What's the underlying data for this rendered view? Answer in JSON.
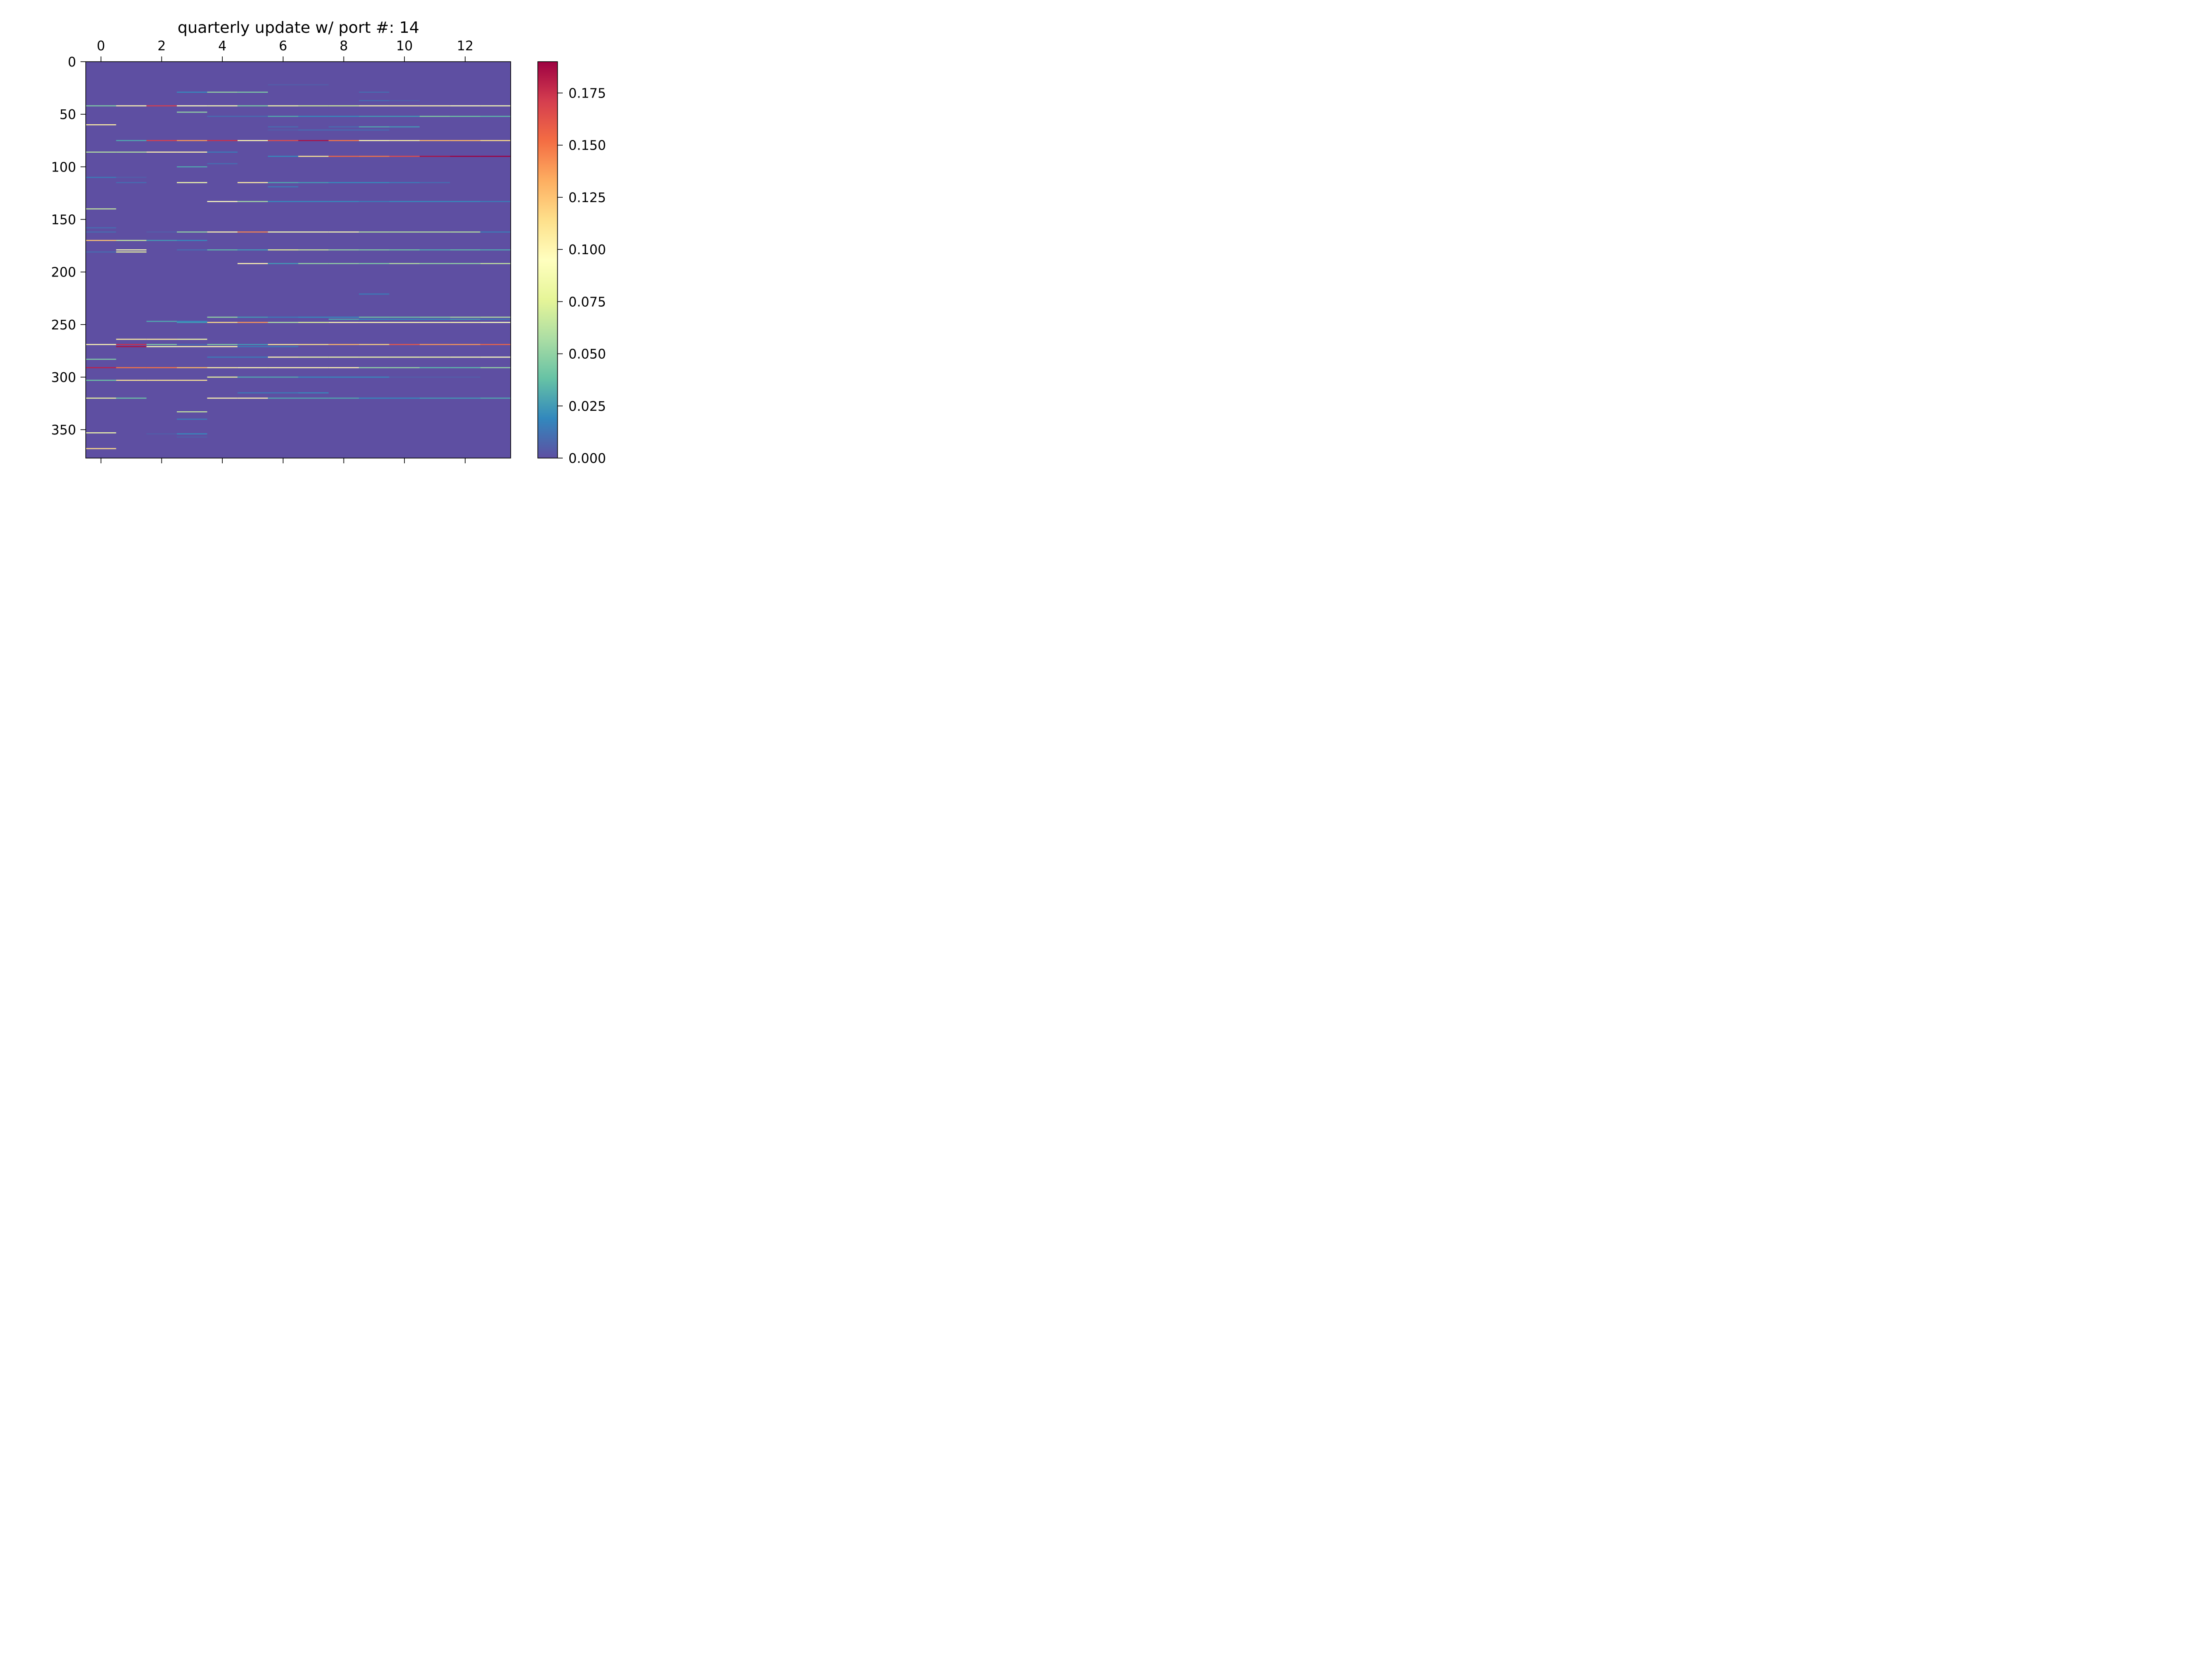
{
  "chart_data": {
    "type": "heatmap",
    "title": "quarterly update w/ port #: 14",
    "colormap": "Spectral_r",
    "x_ticks": [
      0,
      2,
      4,
      6,
      8,
      10,
      12
    ],
    "y_ticks": [
      0,
      50,
      100,
      150,
      200,
      250,
      300,
      350
    ],
    "xlim": [
      -0.5,
      13.5
    ],
    "ylim": [
      377,
      0
    ],
    "n_columns": 14,
    "n_rows": 377,
    "colorbar": {
      "range": [
        0.0,
        0.19
      ],
      "ticks": [
        "0.000",
        "0.025",
        "0.050",
        "0.075",
        "0.100",
        "0.125",
        "0.150",
        "0.175"
      ]
    },
    "background_value": 0.0,
    "rows": [
      {
        "row": 22,
        "cols": [
          6,
          7
        ],
        "values": [
          0.005,
          0.005
        ]
      },
      {
        "row": 29,
        "cols": [
          3,
          4,
          5,
          9
        ],
        "values": [
          0.02,
          0.05,
          0.045,
          0.01
        ]
      },
      {
        "row": 37,
        "cols": [
          9,
          10
        ],
        "values": [
          0.01,
          0.005
        ]
      },
      {
        "row": 42,
        "cols": [
          0,
          1,
          2,
          3,
          4,
          5,
          6,
          7,
          8,
          9,
          10,
          11,
          12,
          13
        ],
        "values": [
          0.045,
          0.1,
          0.17,
          0.095,
          0.09,
          0.045,
          0.085,
          0.07,
          0.07,
          0.1,
          0.1,
          0.1,
          0.095,
          0.09
        ]
      },
      {
        "row": 48,
        "cols": [
          3
        ],
        "values": [
          0.05
        ]
      },
      {
        "row": 52,
        "cols": [
          4,
          5,
          6,
          7,
          8,
          9,
          10,
          11,
          12,
          13
        ],
        "values": [
          0.01,
          0.01,
          0.03,
          0.02,
          0.02,
          0.025,
          0.025,
          0.045,
          0.04,
          0.035
        ]
      },
      {
        "row": 60,
        "cols": [
          0
        ],
        "values": [
          0.105
        ]
      },
      {
        "row": 62,
        "cols": [
          6,
          8,
          9,
          10
        ],
        "values": [
          0.01,
          0.01,
          0.03,
          0.025
        ]
      },
      {
        "row": 65,
        "cols": [
          6,
          7,
          8,
          9
        ],
        "values": [
          0.005,
          0.01,
          0.01,
          0.01
        ]
      },
      {
        "row": 75,
        "cols": [
          1,
          2,
          3,
          4,
          5,
          6,
          7,
          8,
          9,
          10,
          11,
          12,
          13
        ],
        "values": [
          0.03,
          0.17,
          0.14,
          0.175,
          0.1,
          0.165,
          0.185,
          0.15,
          0.1,
          0.105,
          0.13,
          0.13,
          0.115
        ]
      },
      {
        "row": 86,
        "cols": [
          0,
          1,
          2,
          3,
          4
        ],
        "values": [
          0.06,
          0.06,
          0.1,
          0.1,
          0.015
        ]
      },
      {
        "row": 90,
        "cols": [
          6,
          7,
          8,
          9,
          10,
          11,
          12,
          13
        ],
        "values": [
          0.02,
          0.11,
          0.155,
          0.15,
          0.165,
          0.185,
          0.19,
          0.19
        ]
      },
      {
        "row": 97,
        "cols": [
          4
        ],
        "values": [
          0.01
        ]
      },
      {
        "row": 100,
        "cols": [
          3
        ],
        "values": [
          0.03
        ]
      },
      {
        "row": 110,
        "cols": [
          0,
          1
        ],
        "values": [
          0.015,
          0.005
        ]
      },
      {
        "row": 115,
        "cols": [
          1,
          3,
          5,
          6,
          7,
          8,
          9,
          10,
          11
        ],
        "values": [
          0.01,
          0.085,
          0.105,
          0.03,
          0.025,
          0.02,
          0.02,
          0.015,
          0.01
        ]
      },
      {
        "row": 119,
        "cols": [
          6
        ],
        "values": [
          0.015
        ]
      },
      {
        "row": 133,
        "cols": [
          4,
          5,
          6,
          7,
          8,
          9,
          10,
          11,
          12,
          13
        ],
        "values": [
          0.095,
          0.055,
          0.02,
          0.02,
          0.02,
          0.015,
          0.02,
          0.02,
          0.02,
          0.015
        ]
      },
      {
        "row": 140,
        "cols": [
          0
        ],
        "values": [
          0.065
        ]
      },
      {
        "row": 158,
        "cols": [
          0
        ],
        "values": [
          0.01
        ]
      },
      {
        "row": 162,
        "cols": [
          0,
          2,
          3,
          4,
          5,
          6,
          7,
          8,
          9,
          10,
          11,
          12,
          13
        ],
        "values": [
          0.01,
          0.005,
          0.05,
          0.1,
          0.145,
          0.09,
          0.09,
          0.09,
          0.06,
          0.06,
          0.06,
          0.06,
          0.015
        ]
      },
      {
        "row": 170,
        "cols": [
          0,
          1,
          2,
          3
        ],
        "values": [
          0.125,
          0.065,
          0.025,
          0.02
        ]
      },
      {
        "row": 179,
        "cols": [
          1,
          3,
          4,
          5,
          6,
          7,
          8,
          9,
          10,
          11,
          12,
          13
        ],
        "values": [
          0.09,
          0.01,
          0.035,
          0.025,
          0.075,
          0.065,
          0.05,
          0.045,
          0.04,
          0.03,
          0.035,
          0.03
        ]
      },
      {
        "row": 181,
        "cols": [
          0,
          1
        ],
        "values": [
          0.01,
          0.08
        ]
      },
      {
        "row": 192,
        "cols": [
          5,
          6,
          7,
          8,
          9,
          10,
          11,
          12,
          13
        ],
        "values": [
          0.1,
          0.025,
          0.05,
          0.05,
          0.045,
          0.06,
          0.05,
          0.05,
          0.065
        ]
      },
      {
        "row": 221,
        "cols": [
          9
        ],
        "values": [
          0.015
        ]
      },
      {
        "row": 243,
        "cols": [
          4,
          5,
          6,
          7,
          8,
          9,
          10,
          11,
          12,
          13
        ],
        "values": [
          0.05,
          0.025,
          0.015,
          0.02,
          0.02,
          0.04,
          0.04,
          0.045,
          0.055,
          0.06
        ]
      },
      {
        "row": 245,
        "cols": [
          8,
          9,
          10,
          11,
          12,
          13
        ],
        "values": [
          0.03,
          0.02,
          0.02,
          0.02,
          0.025,
          0.015
        ]
      },
      {
        "row": 247,
        "cols": [
          2,
          3
        ],
        "values": [
          0.03,
          0.02
        ]
      },
      {
        "row": 248,
        "cols": [
          3,
          4,
          5,
          6,
          7,
          8,
          9,
          10,
          11,
          12,
          13
        ],
        "values": [
          0.025,
          0.115,
          0.14,
          0.06,
          0.075,
          0.1,
          0.1,
          0.1,
          0.1,
          0.1,
          0.095
        ]
      },
      {
        "row": 264,
        "cols": [
          1,
          2,
          3
        ],
        "values": [
          0.105,
          0.105,
          0.085
        ]
      },
      {
        "row": 269,
        "cols": [
          0,
          1,
          2,
          3,
          4,
          5,
          6,
          7,
          8,
          9,
          10,
          11,
          12,
          13
        ],
        "values": [
          0.1,
          0.175,
          0.045,
          0.01,
          0.045,
          0.025,
          0.11,
          0.115,
          0.13,
          0.12,
          0.16,
          0.14,
          0.14,
          0.155
        ]
      },
      {
        "row": 271,
        "cols": [
          1,
          2,
          3,
          4,
          5,
          6
        ],
        "values": [
          0.185,
          0.09,
          0.1,
          0.1,
          0.015,
          0.015
        ]
      },
      {
        "row": 281,
        "cols": [
          4,
          5,
          6,
          7,
          8,
          9,
          10,
          11,
          12,
          13
        ],
        "values": [
          0.015,
          0.015,
          0.1,
          0.085,
          0.085,
          0.085,
          0.085,
          0.085,
          0.09,
          0.095
        ]
      },
      {
        "row": 283,
        "cols": [
          0
        ],
        "values": [
          0.045
        ]
      },
      {
        "row": 291,
        "cols": [
          0,
          1,
          2,
          3,
          4,
          5,
          6,
          7,
          8,
          9,
          10,
          11,
          12,
          13
        ],
        "values": [
          0.18,
          0.15,
          0.15,
          0.13,
          0.105,
          0.1,
          0.1,
          0.1,
          0.1,
          0.05,
          0.05,
          0.035,
          0.035,
          0.05
        ]
      },
      {
        "row": 300,
        "cols": [
          4,
          5,
          6,
          7,
          8,
          9,
          10,
          11,
          12
        ],
        "values": [
          0.08,
          0.03,
          0.03,
          0.02,
          0.02,
          0.02,
          0.005,
          0.005,
          0.005
        ]
      },
      {
        "row": 303,
        "cols": [
          0,
          1,
          2,
          3
        ],
        "values": [
          0.04,
          0.11,
          0.11,
          0.11
        ]
      },
      {
        "row": 315,
        "cols": [
          5,
          6,
          7
        ],
        "values": [
          0.015,
          0.015,
          0.02
        ]
      },
      {
        "row": 320,
        "cols": [
          0,
          1,
          4,
          5,
          6,
          7,
          8,
          9,
          10,
          11,
          12,
          13
        ],
        "values": [
          0.08,
          0.04,
          0.1,
          0.1,
          0.03,
          0.03,
          0.03,
          0.02,
          0.02,
          0.025,
          0.025,
          0.03
        ]
      },
      {
        "row": 333,
        "cols": [
          3
        ],
        "values": [
          0.065
        ]
      },
      {
        "row": 340,
        "cols": [
          3
        ],
        "values": [
          0.015
        ]
      },
      {
        "row": 353,
        "cols": [
          0
        ],
        "values": [
          0.085
        ]
      },
      {
        "row": 354,
        "cols": [
          2,
          3
        ],
        "values": [
          0.005,
          0.02
        ]
      },
      {
        "row": 357,
        "cols": [
          3
        ],
        "values": [
          0.005
        ]
      },
      {
        "row": 368,
        "cols": [
          0
        ],
        "values": [
          0.115
        ]
      }
    ]
  }
}
